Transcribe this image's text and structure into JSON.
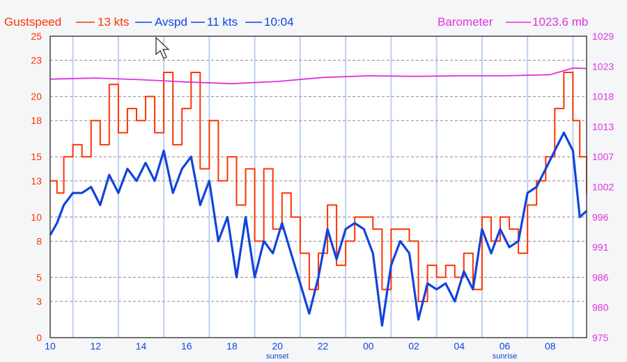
{
  "header": {
    "gust_label": "Gustspeed",
    "gust_value": "13 kts",
    "avg_label": "Avspd",
    "avg_value": "11 kts",
    "time": "10:04",
    "baro_label": "Barometer",
    "baro_value": "1023.6 mb"
  },
  "colors": {
    "gust": "#ff3300",
    "avg": "#1144dd",
    "baro": "#dd33dd",
    "grid_vertical": "#bcd0ee",
    "grid_horizontal": "#8a8a8a",
    "plot_bg": "#ffffff",
    "frame": "#444444"
  },
  "chart_data": {
    "type": "line",
    "x_unit": "hours since 10:00",
    "xlim": [
      0,
      23.6
    ],
    "ylim_left": [
      0,
      25
    ],
    "ylim_right": [
      975,
      1029
    ],
    "x_tick_positions": [
      0,
      2,
      4,
      6,
      8,
      10,
      12,
      14,
      16,
      18,
      20,
      22
    ],
    "x_tick_labels": [
      "10",
      "12",
      "14",
      "16",
      "18",
      "20",
      "22",
      "00",
      "02",
      "04",
      "06",
      "08"
    ],
    "y_left_ticks": [
      0,
      3,
      5,
      8,
      10,
      13,
      15,
      18,
      20,
      23,
      25
    ],
    "y_right_ticks": [
      975,
      980,
      986,
      991,
      996,
      1002,
      1007,
      1013,
      1018,
      1023,
      1029
    ],
    "annotations": [
      {
        "x": 10,
        "text": "sunset"
      },
      {
        "x": 20,
        "text": "sunrise"
      }
    ],
    "grid": true,
    "series": [
      {
        "name": "Gustspeed",
        "axis": "left",
        "x": [
          0,
          0.3,
          0.6,
          1,
          1.4,
          1.8,
          2.2,
          2.6,
          3,
          3.4,
          3.8,
          4.2,
          4.6,
          5,
          5.4,
          5.8,
          6.2,
          6.6,
          7,
          7.4,
          7.8,
          8.2,
          8.6,
          9,
          9.4,
          9.8,
          10.2,
          10.6,
          11,
          11.4,
          11.8,
          12.2,
          12.6,
          13,
          13.4,
          13.8,
          14.2,
          14.6,
          15,
          15.4,
          15.8,
          16.2,
          16.6,
          17,
          17.4,
          17.8,
          18.2,
          18.6,
          19,
          19.4,
          19.8,
          20.2,
          20.6,
          21,
          21.4,
          21.8,
          22.2,
          22.6,
          23,
          23.3,
          23.6
        ],
        "y": [
          13,
          12,
          15,
          16,
          15,
          18,
          16,
          21,
          17,
          19,
          18,
          20,
          17,
          22,
          16,
          19,
          22,
          14,
          18,
          13,
          15,
          11,
          14,
          8,
          14,
          9,
          12,
          10,
          7,
          4,
          7,
          11,
          6,
          8,
          10,
          10,
          9,
          4,
          9,
          9,
          8,
          3,
          6,
          5,
          6,
          5,
          7,
          4,
          10,
          8,
          10,
          9,
          7,
          11,
          13,
          15,
          19,
          22,
          18,
          15,
          12
        ],
        "values_are_estimates": true
      },
      {
        "name": "Avspd",
        "axis": "left",
        "x": [
          0,
          0.3,
          0.6,
          1,
          1.4,
          1.8,
          2.2,
          2.6,
          3,
          3.4,
          3.8,
          4.2,
          4.6,
          5,
          5.4,
          5.8,
          6.2,
          6.6,
          7,
          7.4,
          7.8,
          8.2,
          8.6,
          9,
          9.4,
          9.8,
          10.2,
          10.6,
          11,
          11.4,
          11.8,
          12.2,
          12.6,
          13,
          13.4,
          13.8,
          14.2,
          14.6,
          15,
          15.4,
          15.8,
          16.2,
          16.6,
          17,
          17.4,
          17.8,
          18.2,
          18.6,
          19,
          19.4,
          19.8,
          20.2,
          20.6,
          21,
          21.4,
          21.8,
          22.2,
          22.6,
          23,
          23.3,
          23.6
        ],
        "y": [
          8.5,
          9.5,
          11,
          12,
          12,
          12.5,
          11,
          13.5,
          12,
          14,
          13,
          14.5,
          13,
          15.5,
          12,
          14,
          15,
          11,
          13,
          8,
          10,
          5,
          10,
          5,
          8,
          7,
          9.5,
          7,
          4.5,
          2,
          5,
          9,
          6.5,
          9,
          9.5,
          9,
          7,
          1,
          6,
          8,
          7,
          1.5,
          4.5,
          4,
          4.5,
          3,
          5.5,
          4,
          9,
          7,
          9,
          7.5,
          8,
          12,
          12.5,
          14,
          15.5,
          17,
          15.5,
          10,
          10.5
        ],
        "values_are_estimates": true
      },
      {
        "name": "Barometer",
        "axis": "right",
        "x": [
          0,
          2,
          4,
          6,
          8,
          10,
          12,
          14,
          16,
          18,
          20,
          22,
          23,
          23.6
        ],
        "y": [
          1021.3,
          1021.5,
          1021.2,
          1020.8,
          1020.5,
          1020.9,
          1021.6,
          1021.9,
          1021.8,
          1021.9,
          1021.9,
          1022.1,
          1023.3,
          1023.2
        ],
        "values_are_estimates": true
      }
    ]
  }
}
